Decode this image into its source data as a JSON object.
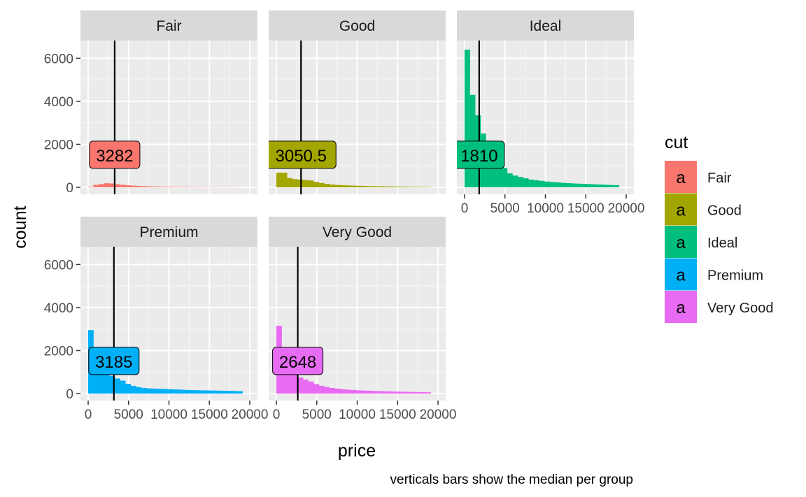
{
  "chart_data": {
    "type": "bar",
    "facet_by": "cut",
    "xlabel": "price",
    "ylabel": "count",
    "caption": "verticals bars show the median per group",
    "xlim": [
      0,
      20000
    ],
    "ylim": [
      0,
      6500
    ],
    "x_ticks": [
      0,
      5000,
      10000,
      15000,
      20000
    ],
    "x_tick_labels": [
      "0",
      "5000",
      "10000",
      "15000",
      "20000"
    ],
    "y_ticks": [
      0,
      2000,
      4000,
      6000
    ],
    "y_tick_labels": [
      "0",
      "2000",
      "4000",
      "6000"
    ],
    "grid": true,
    "legend": {
      "title": "cut",
      "position": "right",
      "key_glyph": "a",
      "entries": [
        "Fair",
        "Good",
        "Ideal",
        "Premium",
        "Very Good"
      ]
    },
    "bin_centers": [
      326,
      985,
      1644,
      2303,
      2962,
      3621,
      4280,
      4939,
      5598,
      6257,
      6916,
      7575,
      8234,
      8893,
      9552,
      10211,
      10870,
      11529,
      12188,
      12847,
      13506,
      14165,
      14824,
      15483,
      16142,
      16801,
      17460,
      18119,
      18778
    ],
    "series": [
      {
        "name": "Fair",
        "color": "#F8766D",
        "median": 3282,
        "median_label": "3282",
        "values": [
          30,
          120,
          150,
          190,
          180,
          140,
          120,
          95,
          80,
          65,
          55,
          45,
          40,
          35,
          30,
          28,
          25,
          22,
          20,
          18,
          16,
          15,
          14,
          13,
          12,
          11,
          10,
          9,
          8
        ]
      },
      {
        "name": "Good",
        "color": "#A3A500",
        "median": 3050.5,
        "median_label": "3050.5",
        "values": [
          680,
          680,
          430,
          380,
          360,
          340,
          320,
          250,
          200,
          160,
          130,
          110,
          100,
          90,
          80,
          72,
          65,
          58,
          52,
          48,
          44,
          40,
          37,
          34,
          31,
          28,
          26,
          24,
          20
        ]
      },
      {
        "name": "Ideal",
        "color": "#00BF7D",
        "median": 1810,
        "median_label": "1810",
        "values": [
          6400,
          4300,
          3350,
          2500,
          1800,
          1400,
          1150,
          900,
          650,
          550,
          480,
          420,
          360,
          330,
          300,
          270,
          250,
          230,
          210,
          195,
          180,
          170,
          160,
          150,
          140,
          130,
          120,
          110,
          100
        ]
      },
      {
        "name": "Premium",
        "color": "#00B0F6",
        "median": 3185,
        "median_label": "3185",
        "values": [
          2950,
          1850,
          1200,
          1000,
          820,
          700,
          600,
          450,
          360,
          300,
          260,
          240,
          230,
          220,
          210,
          200,
          190,
          180,
          170,
          160,
          155,
          150,
          145,
          140,
          135,
          130,
          125,
          120,
          110
        ]
      },
      {
        "name": "Very Good",
        "color": "#E76BF3",
        "median": 2648,
        "median_label": "2648",
        "values": [
          3150,
          1700,
          1100,
          900,
          750,
          650,
          560,
          440,
          360,
          300,
          260,
          230,
          200,
          180,
          165,
          150,
          140,
          130,
          120,
          112,
          105,
          98,
          92,
          86,
          80,
          75,
          70,
          65,
          60
        ]
      }
    ]
  }
}
